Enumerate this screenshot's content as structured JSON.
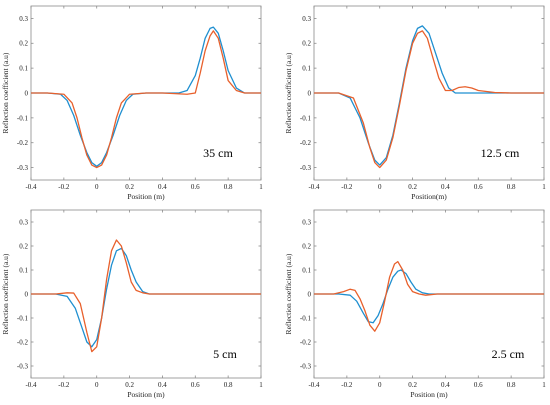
{
  "chart_data": [
    {
      "type": "line",
      "annotation": "35 cm",
      "xlabel": "Position (m)",
      "ylabel": "Reflection coefficient (a.u)",
      "xlim": [
        -0.4,
        1
      ],
      "ylim": [
        -0.35,
        0.35
      ],
      "xticks": [
        "-0.4",
        "-0.2",
        "0",
        "0.2",
        "0.4",
        "0.6",
        "0.8",
        "1"
      ],
      "yticks": [
        "-0.3",
        "-0.2",
        "-0.1",
        "0",
        "0.1",
        "0.2",
        "0.3"
      ],
      "series": [
        {
          "color": "#1f8fd0",
          "x": [
            -0.4,
            -0.3,
            -0.22,
            -0.18,
            -0.14,
            -0.1,
            -0.06,
            -0.03,
            0,
            0.03,
            0.06,
            0.1,
            0.14,
            0.18,
            0.22,
            0.3,
            0.4,
            0.5,
            0.55,
            0.6,
            0.63,
            0.66,
            0.69,
            0.71,
            0.74,
            0.77,
            0.8,
            0.85,
            0.9,
            1
          ],
          "y": [
            0,
            0,
            -0.005,
            -0.03,
            -0.09,
            -0.17,
            -0.24,
            -0.28,
            -0.295,
            -0.28,
            -0.24,
            -0.17,
            -0.09,
            -0.03,
            -0.005,
            0,
            0,
            0,
            0.01,
            0.07,
            0.14,
            0.22,
            0.26,
            0.265,
            0.24,
            0.17,
            0.09,
            0.02,
            0,
            0
          ]
        },
        {
          "color": "#e8602c",
          "x": [
            -0.4,
            -0.3,
            -0.2,
            -0.15,
            -0.12,
            -0.09,
            -0.06,
            -0.03,
            0,
            0.03,
            0.06,
            0.09,
            0.12,
            0.15,
            0.2,
            0.3,
            0.4,
            0.55,
            0.6,
            0.63,
            0.66,
            0.69,
            0.71,
            0.74,
            0.77,
            0.8,
            0.85,
            0.9,
            1
          ],
          "y": [
            0,
            0,
            -0.005,
            -0.04,
            -0.1,
            -0.18,
            -0.25,
            -0.29,
            -0.3,
            -0.29,
            -0.25,
            -0.18,
            -0.1,
            -0.04,
            -0.005,
            0,
            0,
            -0.005,
            0,
            0.08,
            0.17,
            0.23,
            0.25,
            0.22,
            0.14,
            0.05,
            0.01,
            0,
            0
          ]
        }
      ]
    },
    {
      "type": "line",
      "annotation": "12.5 cm",
      "xlabel": "Position(m)",
      "ylabel": "Reflection coefficient (a.u)",
      "xlim": [
        -0.4,
        1
      ],
      "ylim": [
        -0.35,
        0.35
      ],
      "xticks": [
        "-0.4",
        "-0.2",
        "0",
        "0.2",
        "0.4",
        "0.6",
        "0.8",
        "1"
      ],
      "yticks": [
        "-0.3",
        "-0.2",
        "-0.1",
        "0",
        "0.1",
        "0.2",
        "0.3"
      ],
      "series": [
        {
          "color": "#1f8fd0",
          "x": [
            -0.4,
            -0.25,
            -0.18,
            -0.12,
            -0.07,
            -0.03,
            0,
            0.04,
            0.08,
            0.12,
            0.16,
            0.2,
            0.23,
            0.26,
            0.3,
            0.34,
            0.38,
            0.42,
            0.46,
            0.5,
            0.6,
            0.8,
            1
          ],
          "y": [
            0,
            0,
            -0.02,
            -0.1,
            -0.2,
            -0.27,
            -0.29,
            -0.26,
            -0.17,
            -0.04,
            0.1,
            0.21,
            0.26,
            0.27,
            0.24,
            0.16,
            0.08,
            0.02,
            0,
            0,
            0,
            0,
            0
          ]
        },
        {
          "color": "#e8602c",
          "x": [
            -0.4,
            -0.25,
            -0.16,
            -0.1,
            -0.06,
            -0.03,
            0,
            0.04,
            0.08,
            0.12,
            0.16,
            0.2,
            0.23,
            0.26,
            0.29,
            0.32,
            0.36,
            0.4,
            0.44,
            0.48,
            0.52,
            0.56,
            0.6,
            0.7,
            0.8,
            1
          ],
          "y": [
            0,
            0,
            -0.02,
            -0.12,
            -0.22,
            -0.28,
            -0.3,
            -0.27,
            -0.18,
            -0.05,
            0.09,
            0.2,
            0.24,
            0.25,
            0.22,
            0.15,
            0.06,
            0.01,
            0.01,
            0.022,
            0.025,
            0.02,
            0.01,
            0.002,
            0,
            0
          ]
        }
      ]
    },
    {
      "type": "line",
      "annotation": "5 cm",
      "xlabel": "Position (m)",
      "ylabel": "Reflection coefficient (a.u)",
      "xlim": [
        -0.4,
        1
      ],
      "ylim": [
        -0.35,
        0.35
      ],
      "xticks": [
        "-0.4",
        "-0.2",
        "0",
        "0.2",
        "0.4",
        "0.6",
        "0.8",
        "1"
      ],
      "yticks": [
        "-0.3",
        "-0.2",
        "-0.1",
        "0",
        "0.1",
        "0.2",
        "0.3"
      ],
      "series": [
        {
          "color": "#1f8fd0",
          "x": [
            -0.4,
            -0.25,
            -0.18,
            -0.13,
            -0.09,
            -0.06,
            -0.03,
            0,
            0.03,
            0.06,
            0.09,
            0.12,
            0.15,
            0.18,
            0.21,
            0.24,
            0.28,
            0.32,
            0.4,
            0.6,
            1
          ],
          "y": [
            0,
            0,
            -0.01,
            -0.06,
            -0.14,
            -0.2,
            -0.22,
            -0.19,
            -0.1,
            0.02,
            0.12,
            0.18,
            0.19,
            0.16,
            0.1,
            0.05,
            0.01,
            0,
            0,
            0,
            0
          ]
        },
        {
          "color": "#e8602c",
          "x": [
            -0.4,
            -0.25,
            -0.18,
            -0.14,
            -0.1,
            -0.06,
            -0.03,
            0,
            0.03,
            0.06,
            0.09,
            0.12,
            0.15,
            0.18,
            0.21,
            0.24,
            0.28,
            0.32,
            0.4,
            0.6,
            1
          ],
          "y": [
            0,
            0,
            0.005,
            0.004,
            -0.04,
            -0.16,
            -0.24,
            -0.22,
            -0.1,
            0.06,
            0.18,
            0.225,
            0.2,
            0.13,
            0.05,
            0.015,
            0.005,
            0,
            0,
            0,
            0
          ]
        }
      ]
    },
    {
      "type": "line",
      "annotation": "2.5 cm",
      "xlabel": "Position (m)",
      "ylabel": "Reflection coefficient (a.u)",
      "xlim": [
        -0.4,
        1
      ],
      "ylim": [
        -0.35,
        0.35
      ],
      "xticks": [
        "-0.4",
        "-0.2",
        "0",
        "0.2",
        "0.4",
        "0.6",
        "0.8",
        "1"
      ],
      "yticks": [
        "-0.3",
        "-0.2",
        "-0.1",
        "0",
        "0.1",
        "0.2",
        "0.3"
      ],
      "series": [
        {
          "color": "#1f8fd0",
          "x": [
            -0.4,
            -0.25,
            -0.18,
            -0.14,
            -0.1,
            -0.07,
            -0.04,
            -0.01,
            0.02,
            0.05,
            0.08,
            0.11,
            0.13,
            0.16,
            0.19,
            0.22,
            0.26,
            0.3,
            0.4,
            0.6,
            1
          ],
          "y": [
            0,
            0,
            -0.005,
            -0.03,
            -0.08,
            -0.115,
            -0.12,
            -0.09,
            -0.04,
            0.02,
            0.07,
            0.095,
            0.1,
            0.085,
            0.05,
            0.02,
            0.005,
            0,
            0,
            0,
            0
          ]
        },
        {
          "color": "#e8602c",
          "x": [
            -0.4,
            -0.28,
            -0.22,
            -0.18,
            -0.15,
            -0.12,
            -0.09,
            -0.06,
            -0.03,
            0,
            0.03,
            0.06,
            0.09,
            0.11,
            0.14,
            0.17,
            0.2,
            0.24,
            0.28,
            0.35,
            0.6,
            1
          ],
          "y": [
            0,
            0,
            0.01,
            0.02,
            0.015,
            -0.02,
            -0.07,
            -0.13,
            -0.155,
            -0.12,
            -0.03,
            0.07,
            0.125,
            0.135,
            0.1,
            0.04,
            0.01,
            0,
            -0.005,
            0,
            0,
            0
          ]
        }
      ]
    }
  ]
}
